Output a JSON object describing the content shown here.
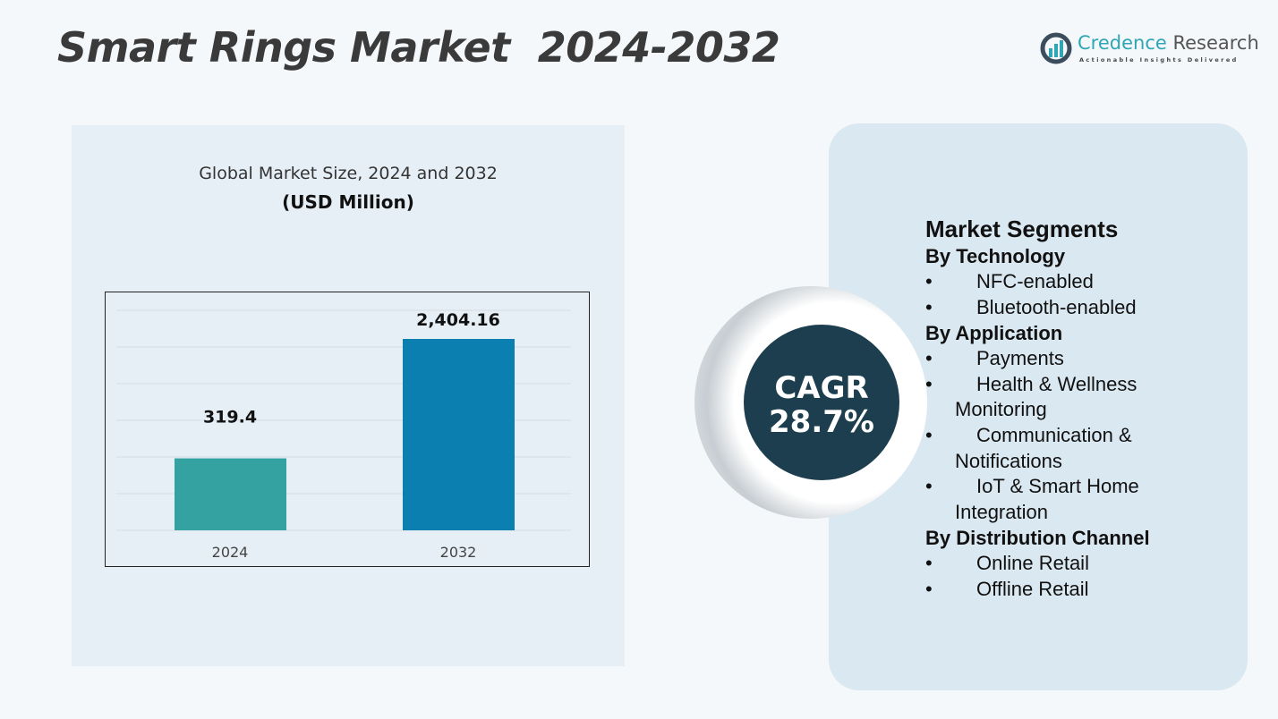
{
  "title": "Smart Rings Market  2024-2032",
  "logo": {
    "name_part1": "Credence",
    "name_part2": " Research",
    "tagline": "Actionable Insights Delivered"
  },
  "chart_header": {
    "line1": "Global Market Size, 2024 and 2032",
    "line2": "(USD Million)"
  },
  "chart_data": {
    "type": "bar",
    "categories": [
      "2024",
      "2032"
    ],
    "values": [
      319.4,
      2404.16
    ],
    "value_labels": [
      "319.4",
      "2,404.16"
    ],
    "title": "Global Market Size, 2024 and 2032",
    "ylabel": "(USD Million)",
    "colors": [
      "#35a2a2",
      "#0a7fb0"
    ],
    "grid": true
  },
  "cagr": {
    "label": "CAGR",
    "value": "28.7%"
  },
  "segments": {
    "heading": "Market Segments",
    "groups": [
      {
        "name": "By Technology",
        "items": [
          "NFC-enabled",
          "Bluetooth-enabled"
        ]
      },
      {
        "name": "By Application",
        "items": [
          "Payments",
          "Health & Wellness Monitoring",
          "Communication & Notifications",
          "IoT & Smart Home Integration"
        ]
      },
      {
        "name": "By Distribution Channel",
        "items": [
          "Online Retail",
          "Offline Retail"
        ]
      }
    ]
  }
}
